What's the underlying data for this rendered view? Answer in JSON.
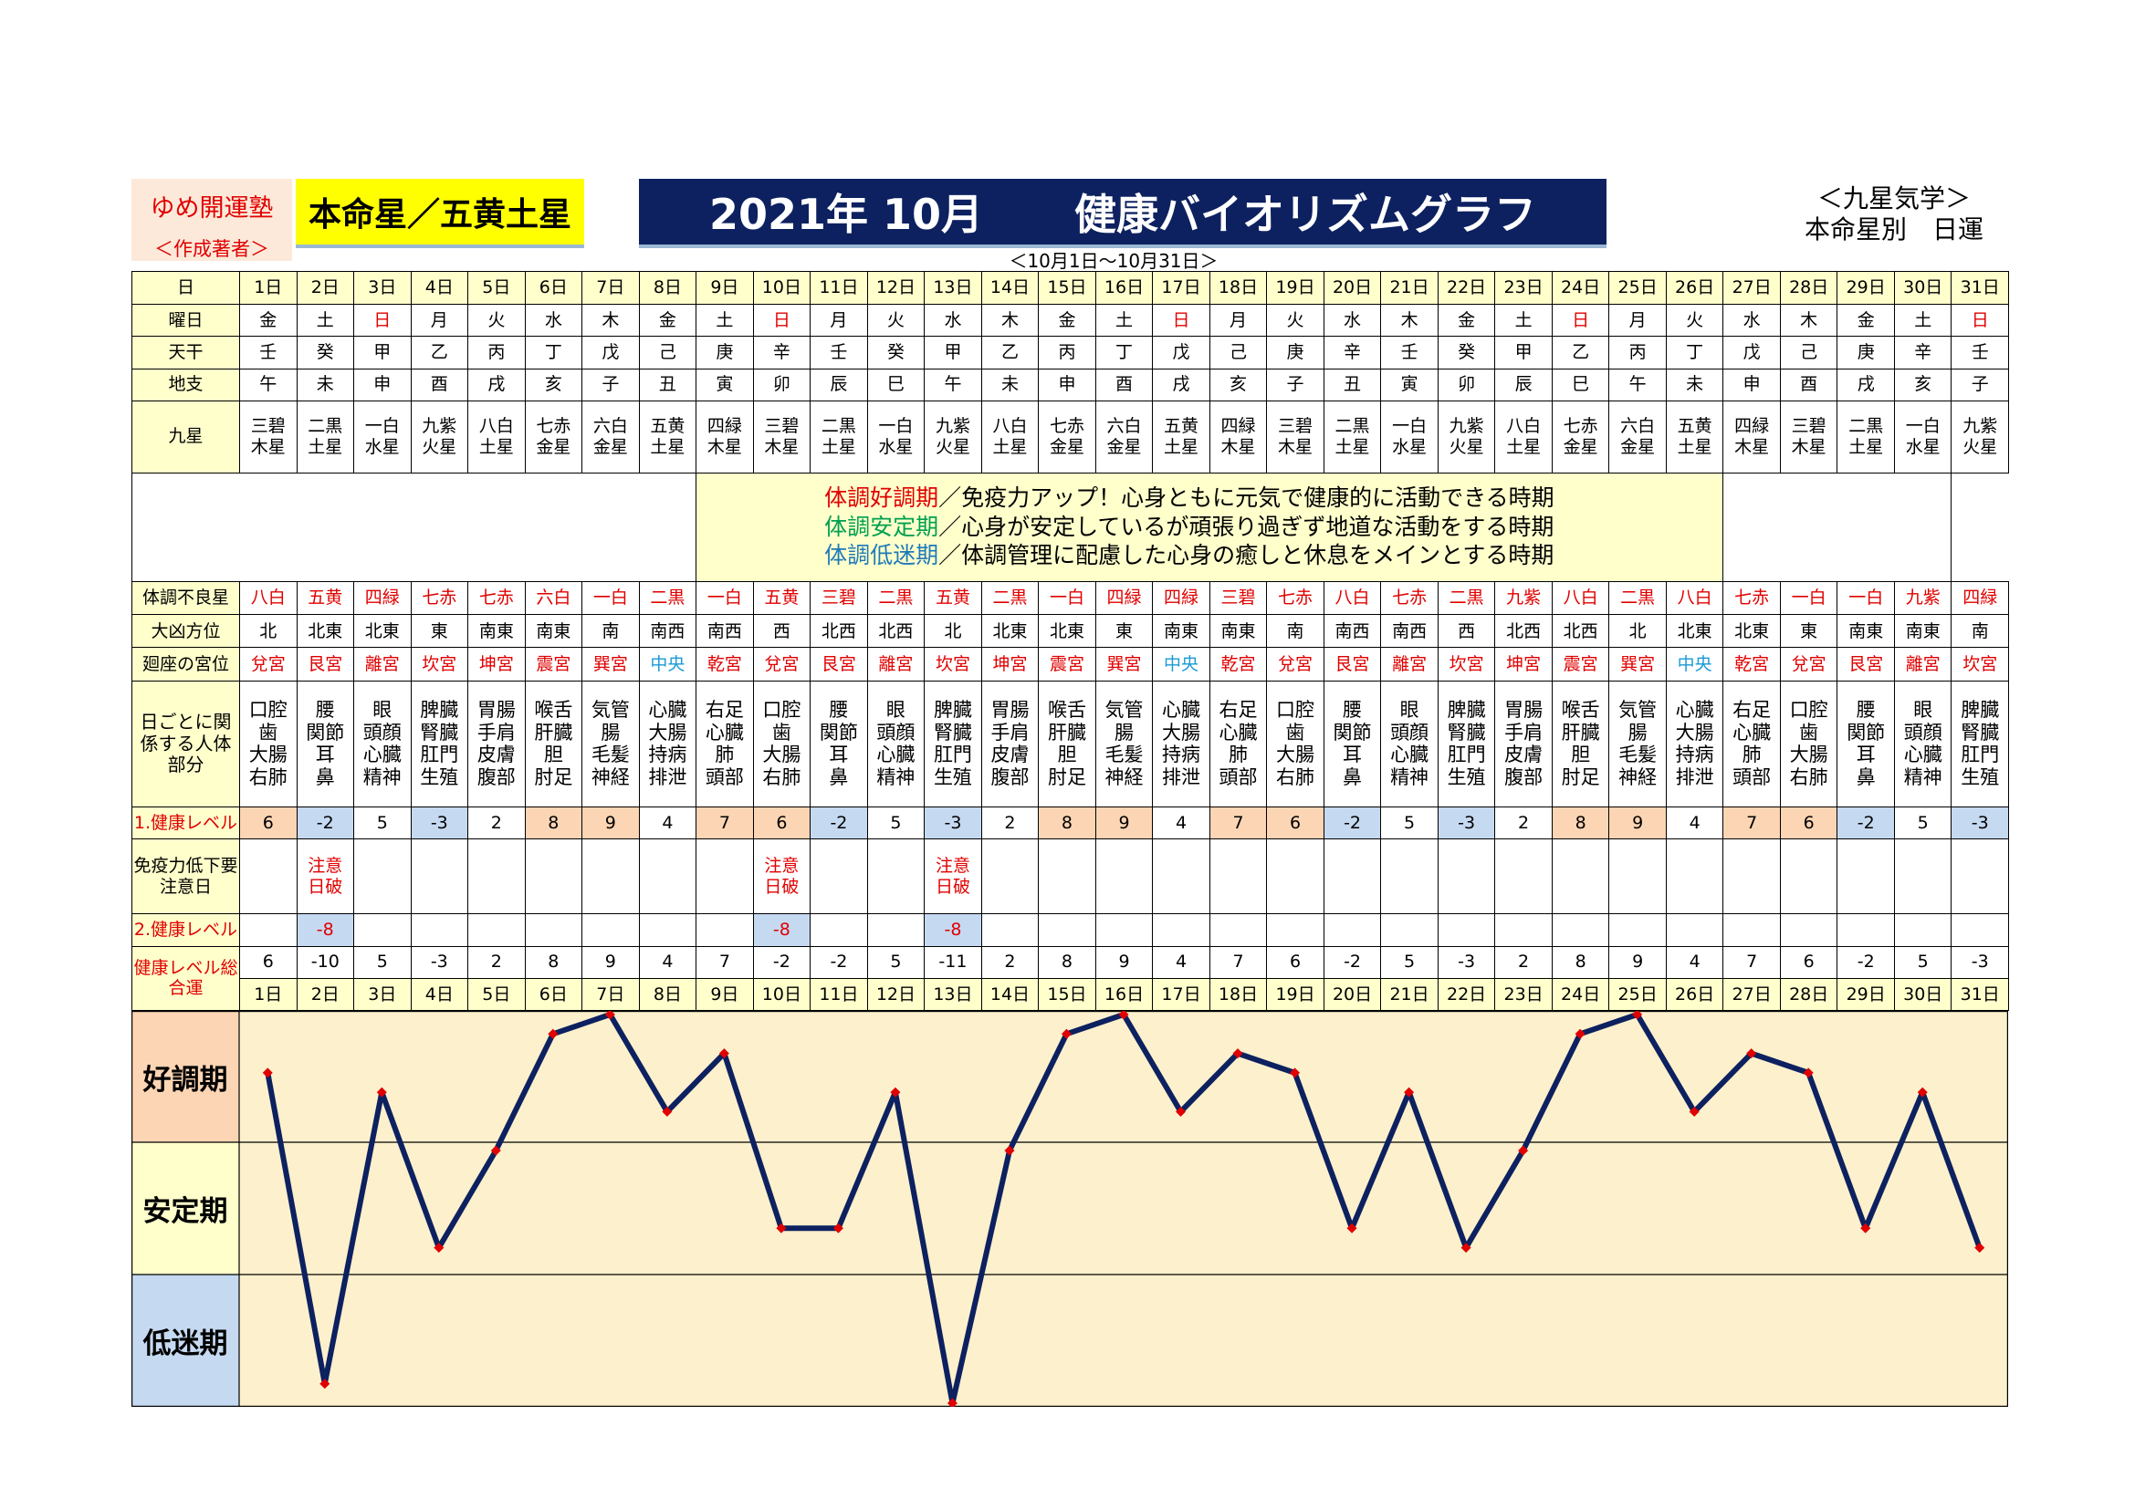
{
  "header": {
    "author_name": "ゆめ開運塾",
    "author_role": "＜作成著者＞",
    "honmei_star": "本命星／五黄土星",
    "title_year": "2021年 10月",
    "title_main": "健康バイオリズムグラフ",
    "period": "＜10月1日〜10月31日＞",
    "kyusei_line1": "＜九星気学＞",
    "kyusei_line2": "本命星別　日運"
  },
  "labels": {
    "day": "日",
    "weekday": "曜日",
    "tenkan": "天干",
    "chishi": "地支",
    "kyusei": "九星",
    "bad_star": "体調不良星",
    "direction": "大凶方位",
    "palace": "廻座の宮位",
    "body": "日ごとに関係する人体部分",
    "level1": "1.健康レベル",
    "caution": "免疫力低下要注意日",
    "level2": "2.健康レベル",
    "total": "健康レベル総合運"
  },
  "legend": {
    "good_term": "体調好調期",
    "good_desc": "／免疫力アップ！心身ともに元気で健康的に活動できる時期",
    "stable_term": "体調安定期",
    "stable_desc": "／心身が安定しているが頑張り過ぎず地道な活動をする時期",
    "low_term": "体調低迷期",
    "low_desc": "／体調管理に配慮した心身の癒しと休息をメインとする時期"
  },
  "days": [
    "1日",
    "2日",
    "3日",
    "4日",
    "5日",
    "6日",
    "7日",
    "8日",
    "9日",
    "10日",
    "11日",
    "12日",
    "13日",
    "14日",
    "15日",
    "16日",
    "17日",
    "18日",
    "19日",
    "20日",
    "21日",
    "22日",
    "23日",
    "24日",
    "25日",
    "26日",
    "27日",
    "28日",
    "29日",
    "30日",
    "31日"
  ],
  "weekdays": [
    "金",
    "土",
    "日",
    "月",
    "火",
    "水",
    "木",
    "金",
    "土",
    "日",
    "月",
    "火",
    "水",
    "木",
    "金",
    "土",
    "日",
    "月",
    "火",
    "水",
    "木",
    "金",
    "土",
    "日",
    "月",
    "火",
    "水",
    "木",
    "金",
    "土",
    "日"
  ],
  "tenkan": [
    "壬",
    "癸",
    "甲",
    "乙",
    "丙",
    "丁",
    "戊",
    "己",
    "庚",
    "辛",
    "壬",
    "癸",
    "甲",
    "乙",
    "丙",
    "丁",
    "戊",
    "己",
    "庚",
    "辛",
    "壬",
    "癸",
    "甲",
    "乙",
    "丙",
    "丁",
    "戊",
    "己",
    "庚",
    "辛",
    "壬"
  ],
  "chishi": [
    "午",
    "未",
    "申",
    "酉",
    "戌",
    "亥",
    "子",
    "丑",
    "寅",
    "卯",
    "辰",
    "巳",
    "午",
    "未",
    "申",
    "酉",
    "戌",
    "亥",
    "子",
    "丑",
    "寅",
    "卯",
    "辰",
    "巳",
    "午",
    "未",
    "申",
    "酉",
    "戌",
    "亥",
    "子"
  ],
  "kyusei": [
    [
      "三碧",
      "木星"
    ],
    [
      "二黒",
      "土星"
    ],
    [
      "一白",
      "水星"
    ],
    [
      "九紫",
      "火星"
    ],
    [
      "八白",
      "土星"
    ],
    [
      "七赤",
      "金星"
    ],
    [
      "六白",
      "金星"
    ],
    [
      "五黄",
      "土星"
    ],
    [
      "四緑",
      "木星"
    ],
    [
      "三碧",
      "木星"
    ],
    [
      "二黒",
      "土星"
    ],
    [
      "一白",
      "水星"
    ],
    [
      "九紫",
      "火星"
    ],
    [
      "八白",
      "土星"
    ],
    [
      "七赤",
      "金星"
    ],
    [
      "六白",
      "金星"
    ],
    [
      "五黄",
      "土星"
    ],
    [
      "四緑",
      "木星"
    ],
    [
      "三碧",
      "木星"
    ],
    [
      "二黒",
      "土星"
    ],
    [
      "一白",
      "水星"
    ],
    [
      "九紫",
      "火星"
    ],
    [
      "八白",
      "土星"
    ],
    [
      "七赤",
      "金星"
    ],
    [
      "六白",
      "金星"
    ],
    [
      "五黄",
      "土星"
    ],
    [
      "四緑",
      "木星"
    ],
    [
      "三碧",
      "木星"
    ],
    [
      "二黒",
      "土星"
    ],
    [
      "一白",
      "水星"
    ],
    [
      "九紫",
      "火星"
    ]
  ],
  "bad_stars": [
    "八白",
    "五黄",
    "四緑",
    "七赤",
    "七赤",
    "六白",
    "一白",
    "二黒",
    "一白",
    "五黄",
    "三碧",
    "二黒",
    "五黄",
    "二黒",
    "一白",
    "四緑",
    "四緑",
    "三碧",
    "七赤",
    "八白",
    "七赤",
    "二黒",
    "九紫",
    "八白",
    "二黒",
    "八白",
    "七赤",
    "一白",
    "一白",
    "九紫",
    "四緑"
  ],
  "directions": [
    "北",
    "北東",
    "北東",
    "東",
    "南東",
    "南東",
    "南",
    "南西",
    "南西",
    "西",
    "北西",
    "北西",
    "北",
    "北東",
    "北東",
    "東",
    "南東",
    "南東",
    "南",
    "南西",
    "南西",
    "西",
    "北西",
    "北西",
    "北",
    "北東",
    "北東",
    "東",
    "南東",
    "南東",
    "南"
  ],
  "palaces": [
    "兌宮",
    "艮宮",
    "離宮",
    "坎宮",
    "坤宮",
    "震宮",
    "巽宮",
    "中央",
    "乾宮",
    "兌宮",
    "艮宮",
    "離宮",
    "坎宮",
    "坤宮",
    "震宮",
    "巽宮",
    "中央",
    "乾宮",
    "兌宮",
    "艮宮",
    "離宮",
    "坎宮",
    "坤宮",
    "震宮",
    "巽宮",
    "中央",
    "乾宮",
    "兌宮",
    "艮宮",
    "離宮",
    "坎宮"
  ],
  "body_parts": [
    [
      "口腔",
      "歯",
      "大腸",
      "右肺"
    ],
    [
      "腰",
      "関節",
      "耳",
      "鼻"
    ],
    [
      "眼",
      "頭顔",
      "心臓",
      "精神"
    ],
    [
      "脾臓",
      "腎臓",
      "肛門",
      "生殖"
    ],
    [
      "胃腸",
      "手肩",
      "皮膚",
      "腹部"
    ],
    [
      "喉舌",
      "肝臓",
      "胆",
      "肘足"
    ],
    [
      "気管",
      "腸",
      "毛髪",
      "神経"
    ],
    [
      "心臓",
      "大腸",
      "持病",
      "排泄"
    ],
    [
      "右足",
      "心臓",
      "肺",
      "頭部"
    ],
    [
      "口腔",
      "歯",
      "大腸",
      "右肺"
    ],
    [
      "腰",
      "関節",
      "耳",
      "鼻"
    ],
    [
      "眼",
      "頭顔",
      "心臓",
      "精神"
    ],
    [
      "脾臓",
      "腎臓",
      "肛門",
      "生殖"
    ],
    [
      "胃腸",
      "手肩",
      "皮膚",
      "腹部"
    ],
    [
      "喉舌",
      "肝臓",
      "胆",
      "肘足"
    ],
    [
      "気管",
      "腸",
      "毛髪",
      "神経"
    ],
    [
      "心臓",
      "大腸",
      "持病",
      "排泄"
    ],
    [
      "右足",
      "心臓",
      "肺",
      "頭部"
    ],
    [
      "口腔",
      "歯",
      "大腸",
      "右肺"
    ],
    [
      "腰",
      "関節",
      "耳",
      "鼻"
    ],
    [
      "眼",
      "頭顔",
      "心臓",
      "精神"
    ],
    [
      "脾臓",
      "腎臓",
      "肛門",
      "生殖"
    ],
    [
      "胃腸",
      "手肩",
      "皮膚",
      "腹部"
    ],
    [
      "喉舌",
      "肝臓",
      "胆",
      "肘足"
    ],
    [
      "気管",
      "腸",
      "毛髪",
      "神経"
    ],
    [
      "心臓",
      "大腸",
      "持病",
      "排泄"
    ],
    [
      "右足",
      "心臓",
      "肺",
      "頭部"
    ],
    [
      "口腔",
      "歯",
      "大腸",
      "右肺"
    ],
    [
      "腰",
      "関節",
      "耳",
      "鼻"
    ],
    [
      "眼",
      "頭顔",
      "心臓",
      "精神"
    ],
    [
      "脾臓",
      "腎臓",
      "肛門",
      "生殖"
    ]
  ],
  "level1": [
    6,
    -2,
    5,
    -3,
    2,
    8,
    9,
    4,
    7,
    6,
    -2,
    5,
    -3,
    2,
    8,
    9,
    4,
    7,
    6,
    -2,
    5,
    -3,
    2,
    8,
    9,
    4,
    7,
    6,
    -2,
    5,
    -3
  ],
  "caution_days": [
    {
      "day_index": 1,
      "line1": "注意",
      "line2": "日破"
    },
    {
      "day_index": 9,
      "line1": "注意",
      "line2": "日破"
    },
    {
      "day_index": 12,
      "line1": "注意",
      "line2": "日破"
    }
  ],
  "level2": [
    "",
    "-8",
    "",
    "",
    "",
    "",
    "",
    "",
    "",
    "-8",
    "",
    "",
    "-8",
    "",
    "",
    "",
    "",
    "",
    "",
    "",
    "",
    "",
    "",
    "",
    "",
    "",
    "",
    "",
    "",
    "",
    ""
  ],
  "totals": [
    6,
    -10,
    5,
    -3,
    2,
    8,
    9,
    4,
    7,
    -2,
    -2,
    5,
    -11,
    2,
    8,
    9,
    4,
    7,
    6,
    -2,
    5,
    -3,
    2,
    8,
    9,
    4,
    7,
    6,
    -2,
    5,
    -3
  ],
  "bands": {
    "good": "好調期",
    "stable": "安定期",
    "low": "低迷期"
  },
  "chart_data": {
    "type": "line",
    "x": [
      "1日",
      "2日",
      "3日",
      "4日",
      "5日",
      "6日",
      "7日",
      "8日",
      "9日",
      "10日",
      "11日",
      "12日",
      "13日",
      "14日",
      "15日",
      "16日",
      "17日",
      "18日",
      "19日",
      "20日",
      "21日",
      "22日",
      "23日",
      "24日",
      "25日",
      "26日",
      "27日",
      "28日",
      "29日",
      "30日",
      "31日"
    ],
    "series": [
      {
        "values": [
          6,
          -10,
          5,
          -3,
          2,
          8,
          9,
          4,
          7,
          -2,
          -2,
          5,
          -11,
          2,
          8,
          9,
          4,
          7,
          6,
          -2,
          5,
          -3,
          2,
          8,
          9,
          4,
          7,
          6,
          -2,
          5,
          -3
        ]
      }
    ],
    "ylim": [
      -11,
      9
    ],
    "bands": [
      "好調期",
      "安定期",
      "低迷期"
    ],
    "colors": {
      "line": "#0d2160",
      "marker": "#e00000",
      "good_band": "#fcd5b4",
      "stable_band": "#ffffcc",
      "low_band": "#c5d9f1",
      "plot_bg": "#fdf0cc"
    }
  }
}
